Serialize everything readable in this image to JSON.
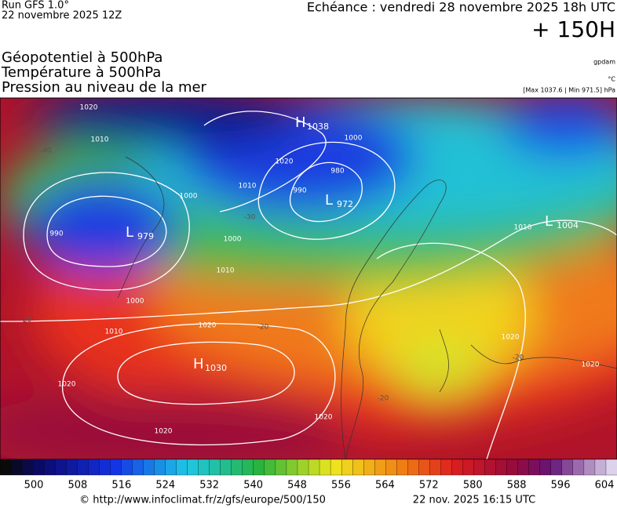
{
  "header": {
    "run": "Run GFS 1.0°",
    "run_date": "22 novembre 2025 12Z",
    "valid": "Echéance : vendredi 28 novembre 2025 18h UTC",
    "lead": "+ 150H"
  },
  "legend": {
    "lines": [
      "Géopotentiel à 500hPa",
      "Température à 500hPa",
      "Pression au niveau de la mer"
    ],
    "units": [
      "gpdam",
      "°C",
      "[Max 1037.6 | Min 971.5] hPa"
    ]
  },
  "map": {
    "centers": [
      {
        "type": "H",
        "value": "1038"
      },
      {
        "type": "L",
        "value": "972"
      },
      {
        "type": "L",
        "value": "979"
      },
      {
        "type": "H",
        "value": "1030"
      },
      {
        "type": "L",
        "value": "1004"
      }
    ],
    "isobar_labels": [
      "1020",
      "1010",
      "1000",
      "990",
      "1000",
      "1010",
      "1000",
      "1010",
      "1020",
      "1020",
      "1020",
      "1020",
      "1010",
      "1020",
      "990",
      "980",
      "1000",
      "1010",
      "1020",
      "1020"
    ],
    "temperature_labels": [
      "-40",
      "-30",
      "-20",
      "-20",
      "-20",
      "-20"
    ]
  },
  "colorbar": {
    "labels": [
      500,
      508,
      516,
      524,
      532,
      540,
      548,
      556,
      564,
      572,
      580,
      588,
      596,
      604
    ]
  },
  "footer": {
    "source": "© http://www.infoclimat.fr/z/gfs/europe/500/150",
    "generated": "22 nov. 2025 16:15 UTC"
  }
}
